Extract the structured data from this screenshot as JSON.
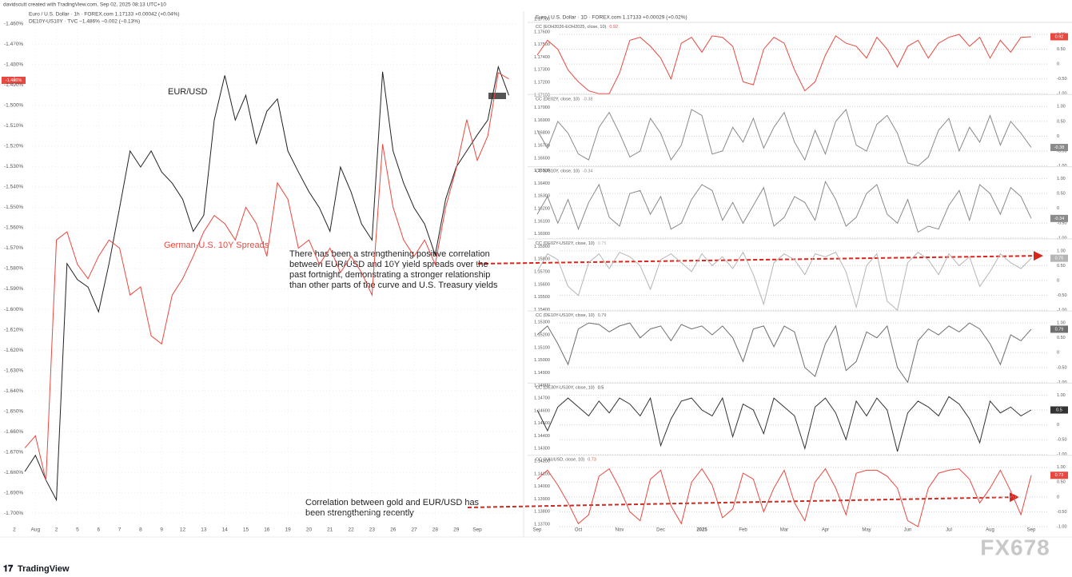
{
  "chart_data": [
    {
      "type": "line",
      "header": [
        "davidscutt created with TradingView.com, Sep 02, 2025 08:13 UTC+10",
        "Euro / U.S. Dollar · 1h · FOREX.com 1.17133 +0.00042 (+0.04%)",
        "DE10Y-US10Y · TVC −1.486% −0.002 (−0.13%)"
      ],
      "badge_label": "-1.486%",
      "categories": [
        "2",
        null,
        "Aug",
        null,
        "2",
        null,
        "5",
        null,
        "6",
        null,
        "7",
        null,
        "8",
        null,
        "9",
        null,
        "12",
        null,
        "13",
        null,
        "14",
        null,
        "15",
        null,
        "16",
        null,
        "19",
        null,
        "20",
        null,
        "21",
        null,
        "22",
        null,
        "23",
        null,
        "26",
        null,
        "27",
        null,
        "28",
        null,
        "29",
        null,
        "Sep",
        null,
        null,
        null
      ],
      "ylim": [
        -1.705,
        -1.455
      ],
      "yticks": [
        {
          "value": -1.46,
          "label": "-1.460%"
        },
        {
          "value": -1.47,
          "label": "-1.470%"
        },
        {
          "value": -1.48,
          "label": "-1.480%"
        },
        {
          "value": -1.49,
          "label": "-1.490%"
        },
        {
          "value": -1.5,
          "label": "-1.500%"
        },
        {
          "value": -1.51,
          "label": "-1.510%"
        },
        {
          "value": -1.52,
          "label": "-1.520%"
        },
        {
          "value": -1.53,
          "label": "-1.530%"
        },
        {
          "value": -1.54,
          "label": "-1.540%"
        },
        {
          "value": -1.55,
          "label": "-1.550%"
        },
        {
          "value": -1.56,
          "label": "-1.560%"
        },
        {
          "value": -1.57,
          "label": "-1.570%"
        },
        {
          "value": -1.58,
          "label": "-1.580%"
        },
        {
          "value": -1.59,
          "label": "-1.590%"
        },
        {
          "value": -1.6,
          "label": "-1.600%"
        },
        {
          "value": -1.61,
          "label": "-1.610%"
        },
        {
          "value": -1.62,
          "label": "-1.620%"
        },
        {
          "value": -1.63,
          "label": "-1.630%"
        },
        {
          "value": -1.64,
          "label": "-1.640%"
        },
        {
          "value": -1.65,
          "label": "-1.650%"
        },
        {
          "value": -1.66,
          "label": "-1.660%"
        },
        {
          "value": -1.67,
          "label": "-1.670%"
        },
        {
          "value": -1.68,
          "label": "-1.680%"
        },
        {
          "value": -1.69,
          "label": "-1.690%"
        },
        {
          "value": -1.7,
          "label": "-1.700%"
        }
      ],
      "y2lim": [
        1.1376,
        1.1788
      ],
      "grid": true,
      "series": [
        {
          "name": "EUR/USD",
          "color": "#222222",
          "axis": "y2",
          "values": [
            null,
            1.1418,
            1.1431,
            1.1411,
            1.1395,
            1.1586,
            1.1573,
            1.1567,
            1.1547,
            1.1586,
            1.1631,
            1.1677,
            1.1664,
            1.1677,
            1.166,
            1.1651,
            1.1638,
            1.1612,
            1.1625,
            1.1702,
            1.1738,
            1.1702,
            1.1722,
            1.1683,
            1.1709,
            1.1719,
            1.1677,
            1.166,
            1.1644,
            1.1631,
            1.1612,
            1.1664,
            1.1644,
            1.1618,
            1.1605,
            1.1741,
            1.1677,
            1.1651,
            1.1631,
            1.1618,
            1.1593,
            1.1638,
            1.1664,
            1.1677,
            1.169,
            1.1702,
            1.1745,
            1.1722
          ]
        },
        {
          "name": "German-U.S. 10Y Spreads",
          "color": "#e8483f",
          "values": [
            null,
            -1.668,
            -1.662,
            -1.684,
            -1.566,
            -1.562,
            -1.578,
            -1.585,
            -1.574,
            -1.566,
            -1.57,
            -1.593,
            -1.589,
            -1.613,
            -1.617,
            -1.593,
            -1.585,
            -1.574,
            -1.562,
            -1.554,
            -1.558,
            -1.566,
            -1.55,
            -1.558,
            -1.574,
            -1.538,
            -1.546,
            -1.57,
            -1.566,
            -1.578,
            -1.57,
            -1.582,
            -1.574,
            -1.582,
            -1.593,
            -1.519,
            -1.55,
            -1.566,
            -1.574,
            -1.566,
            -1.578,
            -1.55,
            -1.531,
            -1.507,
            -1.527,
            -1.515,
            -1.484,
            -1.487
          ]
        }
      ]
    },
    {
      "type": "line",
      "header": "Euro / U.S. Dollar · 1D · FOREX.com 1.17133 +0.00029 (+0.02%)",
      "categories": [
        "Sep",
        null,
        null,
        null,
        "Oct",
        null,
        null,
        null,
        "Nov",
        null,
        null,
        null,
        "Dec",
        null,
        null,
        null,
        "2025",
        null,
        null,
        null,
        "Feb",
        null,
        null,
        null,
        "Mar",
        null,
        null,
        null,
        "Apr",
        null,
        null,
        null,
        "May",
        null,
        null,
        null,
        "Jun",
        null,
        null,
        null,
        "Jul",
        null,
        null,
        null,
        "Aug",
        null,
        null,
        null,
        "Sep"
      ],
      "ylim": [
        1.137,
        1.177
      ],
      "yticks": [
        {
          "value": 1.177,
          "label": "1.17700"
        },
        {
          "value": 1.176,
          "label": "1.17600"
        },
        {
          "value": 1.175,
          "label": "1.17500"
        },
        {
          "value": 1.174,
          "label": "1.17400"
        },
        {
          "value": 1.173,
          "label": "1.17300"
        },
        {
          "value": 1.172,
          "label": "1.17200"
        },
        {
          "value": 1.171,
          "label": "1.17100"
        },
        {
          "value": 1.17,
          "label": "1.17000"
        },
        {
          "value": 1.169,
          "label": "1.16900"
        },
        {
          "value": 1.168,
          "label": "1.16800"
        },
        {
          "value": 1.167,
          "label": "1.16700"
        },
        {
          "value": 1.166,
          "label": "1.16600"
        },
        {
          "value": 1.165,
          "label": "1.16500"
        },
        {
          "value": 1.164,
          "label": "1.16400"
        },
        {
          "value": 1.163,
          "label": "1.16300"
        },
        {
          "value": 1.162,
          "label": "1.16200"
        },
        {
          "value": 1.161,
          "label": "1.16100"
        },
        {
          "value": 1.16,
          "label": "1.16000"
        },
        {
          "value": 1.159,
          "label": "1.15900"
        },
        {
          "value": 1.158,
          "label": "1.15800"
        },
        {
          "value": 1.157,
          "label": "1.15700"
        },
        {
          "value": 1.156,
          "label": "1.15600"
        },
        {
          "value": 1.155,
          "label": "1.15500"
        },
        {
          "value": 1.154,
          "label": "1.15400"
        },
        {
          "value": 1.153,
          "label": "1.15300"
        },
        {
          "value": 1.152,
          "label": "1.15200"
        },
        {
          "value": 1.151,
          "label": "1.15100"
        },
        {
          "value": 1.15,
          "label": "1.15000"
        },
        {
          "value": 1.149,
          "label": "1.14900"
        },
        {
          "value": 1.148,
          "label": "1.14800"
        },
        {
          "value": 1.147,
          "label": "1.14700"
        },
        {
          "value": 1.146,
          "label": "1.14600"
        },
        {
          "value": 1.145,
          "label": "1.14500"
        },
        {
          "value": 1.144,
          "label": "1.14400"
        },
        {
          "value": 1.143,
          "label": "1.14300"
        },
        {
          "value": 1.142,
          "label": "1.14200"
        },
        {
          "value": 1.141,
          "label": "1.14100"
        },
        {
          "value": 1.14,
          "label": "1.14000"
        },
        {
          "value": 1.139,
          "label": "1.13900"
        },
        {
          "value": 1.138,
          "label": "1.13800"
        },
        {
          "value": 1.137,
          "label": "1.13700"
        }
      ],
      "y2lim": [
        -1,
        1
      ],
      "y2ticks": [
        {
          "value": 1,
          "label": "1.00"
        },
        {
          "value": 0.5,
          "label": "0.50"
        },
        0,
        {
          "value": -0.5,
          "label": "-0.50"
        },
        {
          "value": -1,
          "label": "-1.00"
        }
      ],
      "grid": true,
      "series": [
        {
          "name": "CC (EOH2026-EOH2025, close, 10)",
          "color": "#e8483f",
          "axis": "y2",
          "values": [
            0.3,
            0.8,
            0.5,
            -0.2,
            -0.6,
            -0.9,
            -1,
            -1,
            -0.3,
            0.8,
            0.9,
            0.6,
            0.2,
            -0.5,
            0.7,
            0.9,
            0.4,
            0.95,
            0.9,
            0.6,
            -0.6,
            -0.7,
            0.5,
            0.9,
            0.7,
            -0.2,
            -0.9,
            -0.6,
            0.3,
            0.95,
            0.7,
            0.6,
            0.2,
            0.9,
            0.5,
            -0.1,
            0.6,
            0.8,
            0.2,
            0.7,
            0.9,
            1,
            0.6,
            0.9,
            0.2,
            0.8,
            0.4,
            0.9,
            0.92
          ]
        },
        {
          "name": "CC (DE02Y, close, 10)",
          "color": "#8a8a8a",
          "axis": "y2",
          "values": [
            0.2,
            -0.4,
            0.5,
            0.1,
            -0.6,
            -0.8,
            0.3,
            0.8,
            0.1,
            -0.7,
            -0.5,
            0.6,
            0.1,
            -0.8,
            -0.3,
            0.9,
            0.7,
            -0.6,
            -0.5,
            0.3,
            -0.2,
            0.6,
            -0.4,
            0.3,
            0.8,
            -0.2,
            -0.8,
            0.2,
            -0.6,
            0.5,
            0.9,
            -0.3,
            -0.5,
            0.4,
            0.7,
            0.1,
            -0.9,
            -1,
            -0.7,
            0.2,
            0.6,
            -0.5,
            0.3,
            -0.2,
            0.7,
            -0.3,
            0.5,
            0.1,
            -0.38
          ]
        },
        {
          "name": "CC (US10Y, close, 10)",
          "color": "#8a8a8a",
          "axis": "y2",
          "values": [
            -0.2,
            0.4,
            -0.5,
            0.3,
            -0.7,
            0.2,
            0.8,
            -0.3,
            -0.6,
            0.5,
            0.6,
            -0.2,
            0.4,
            -0.7,
            -0.5,
            0.3,
            0.8,
            0.6,
            -0.4,
            0.2,
            -0.5,
            0.1,
            0.7,
            -0.6,
            -0.3,
            0.4,
            0.2,
            -0.4,
            0.9,
            0.3,
            -0.6,
            -0.3,
            0.5,
            0.8,
            -0.2,
            -0.5,
            0.3,
            -0.8,
            -0.6,
            -0.7,
            0.1,
            0.6,
            -0.4,
            0.8,
            0.5,
            -0.2,
            0.7,
            0.4,
            -0.34
          ]
        },
        {
          "name": "CC (DE02Y-US02Y, close, 10)",
          "color": "#b5b5b5",
          "axis": "y2",
          "values": [
            0.3,
            0.9,
            0.7,
            -0.2,
            -0.5,
            0.6,
            0.9,
            0.4,
            0.95,
            0.8,
            0.5,
            -0.3,
            0.7,
            0.9,
            0.6,
            0.3,
            0.9,
            0.5,
            0.8,
            0.4,
            0.95,
            0.2,
            -0.8,
            0.6,
            0.9,
            0.7,
            0.2,
            0.9,
            0.8,
            0.95,
            0.3,
            -0.9,
            0.5,
            0.9,
            -0.7,
            -1,
            0.6,
            0.95,
            0.7,
            0.2,
            0.9,
            0.5,
            0.8,
            -0.2,
            0.3,
            0.9,
            0.6,
            0.4,
            0.75
          ]
        },
        {
          "name": "CC (DE10Y-US10Y, close, 10)",
          "color": "#6e6e6e",
          "axis": "y2",
          "values": [
            0.6,
            0.9,
            0.3,
            -0.4,
            0.8,
            1,
            0.95,
            0.7,
            0.9,
            1,
            0.5,
            0.8,
            0.9,
            0.4,
            0.95,
            0.8,
            0.9,
            0.6,
            0.9,
            0.5,
            -0.3,
            0.8,
            0.9,
            0.2,
            0.9,
            0.7,
            -0.5,
            -0.8,
            0.3,
            0.9,
            -0.6,
            -0.3,
            0.7,
            0.5,
            0.9,
            -0.5,
            -1,
            0.4,
            0.8,
            0.6,
            0.9,
            0.7,
            1,
            0.8,
            0.3,
            -0.4,
            0.6,
            0.4,
            0.79
          ]
        },
        {
          "name": "CC (DE30Y-US30Y, close, 10)",
          "color": "#333333",
          "axis": "y2",
          "values": [
            0.5,
            -0.2,
            0.6,
            0.9,
            0.6,
            0.3,
            0.8,
            0.4,
            0.9,
            0.7,
            0.3,
            0.9,
            -0.7,
            0.2,
            0.8,
            0.9,
            0.5,
            0.3,
            0.9,
            -0.4,
            0.7,
            0.5,
            -0.3,
            0.9,
            0.6,
            0.3,
            -0.8,
            0.6,
            0.9,
            0.4,
            -0.5,
            0.8,
            0.3,
            0.9,
            0.5,
            -0.9,
            0.4,
            0.8,
            0.6,
            0.3,
            0.95,
            0.7,
            0.2,
            -0.6,
            0.8,
            0.4,
            0.6,
            0.3,
            0.5
          ]
        },
        {
          "name": "CC (XAUUSD, close, 10)",
          "color": "#e8483f",
          "axis": "y2",
          "values": [
            0.6,
            0.9,
            0.4,
            -0.2,
            -0.9,
            -0.6,
            0.7,
            0.95,
            0.3,
            -0.5,
            -0.8,
            0.6,
            0.9,
            -0.3,
            -0.9,
            0.5,
            0.95,
            0.4,
            -0.7,
            -0.4,
            0.8,
            0.6,
            -0.5,
            0.3,
            0.9,
            -0.2,
            -0.8,
            0.5,
            0.95,
            0.3,
            -0.6,
            0.8,
            0.9,
            0.9,
            0.7,
            0.3,
            -0.8,
            -1,
            0.3,
            0.8,
            0.9,
            0.95,
            0.6,
            -0.2,
            0.3,
            0.9,
            0.2,
            -0.6,
            0.73
          ]
        }
      ]
    }
  ],
  "annotations": [
    [
      "There has been a strengthening positive correlation",
      "between EUR/USD and 10Y yield spreads over the",
      "past fortnight, demonstrating a stronger relationship",
      "than other parts of the curve and U.S. Treasury yields"
    ],
    [
      "Correlation between gold and EUR/USD has",
      "been strengthening recently"
    ]
  ],
  "footer": {
    "logo": "TradingView",
    "watermark": "FX678"
  }
}
